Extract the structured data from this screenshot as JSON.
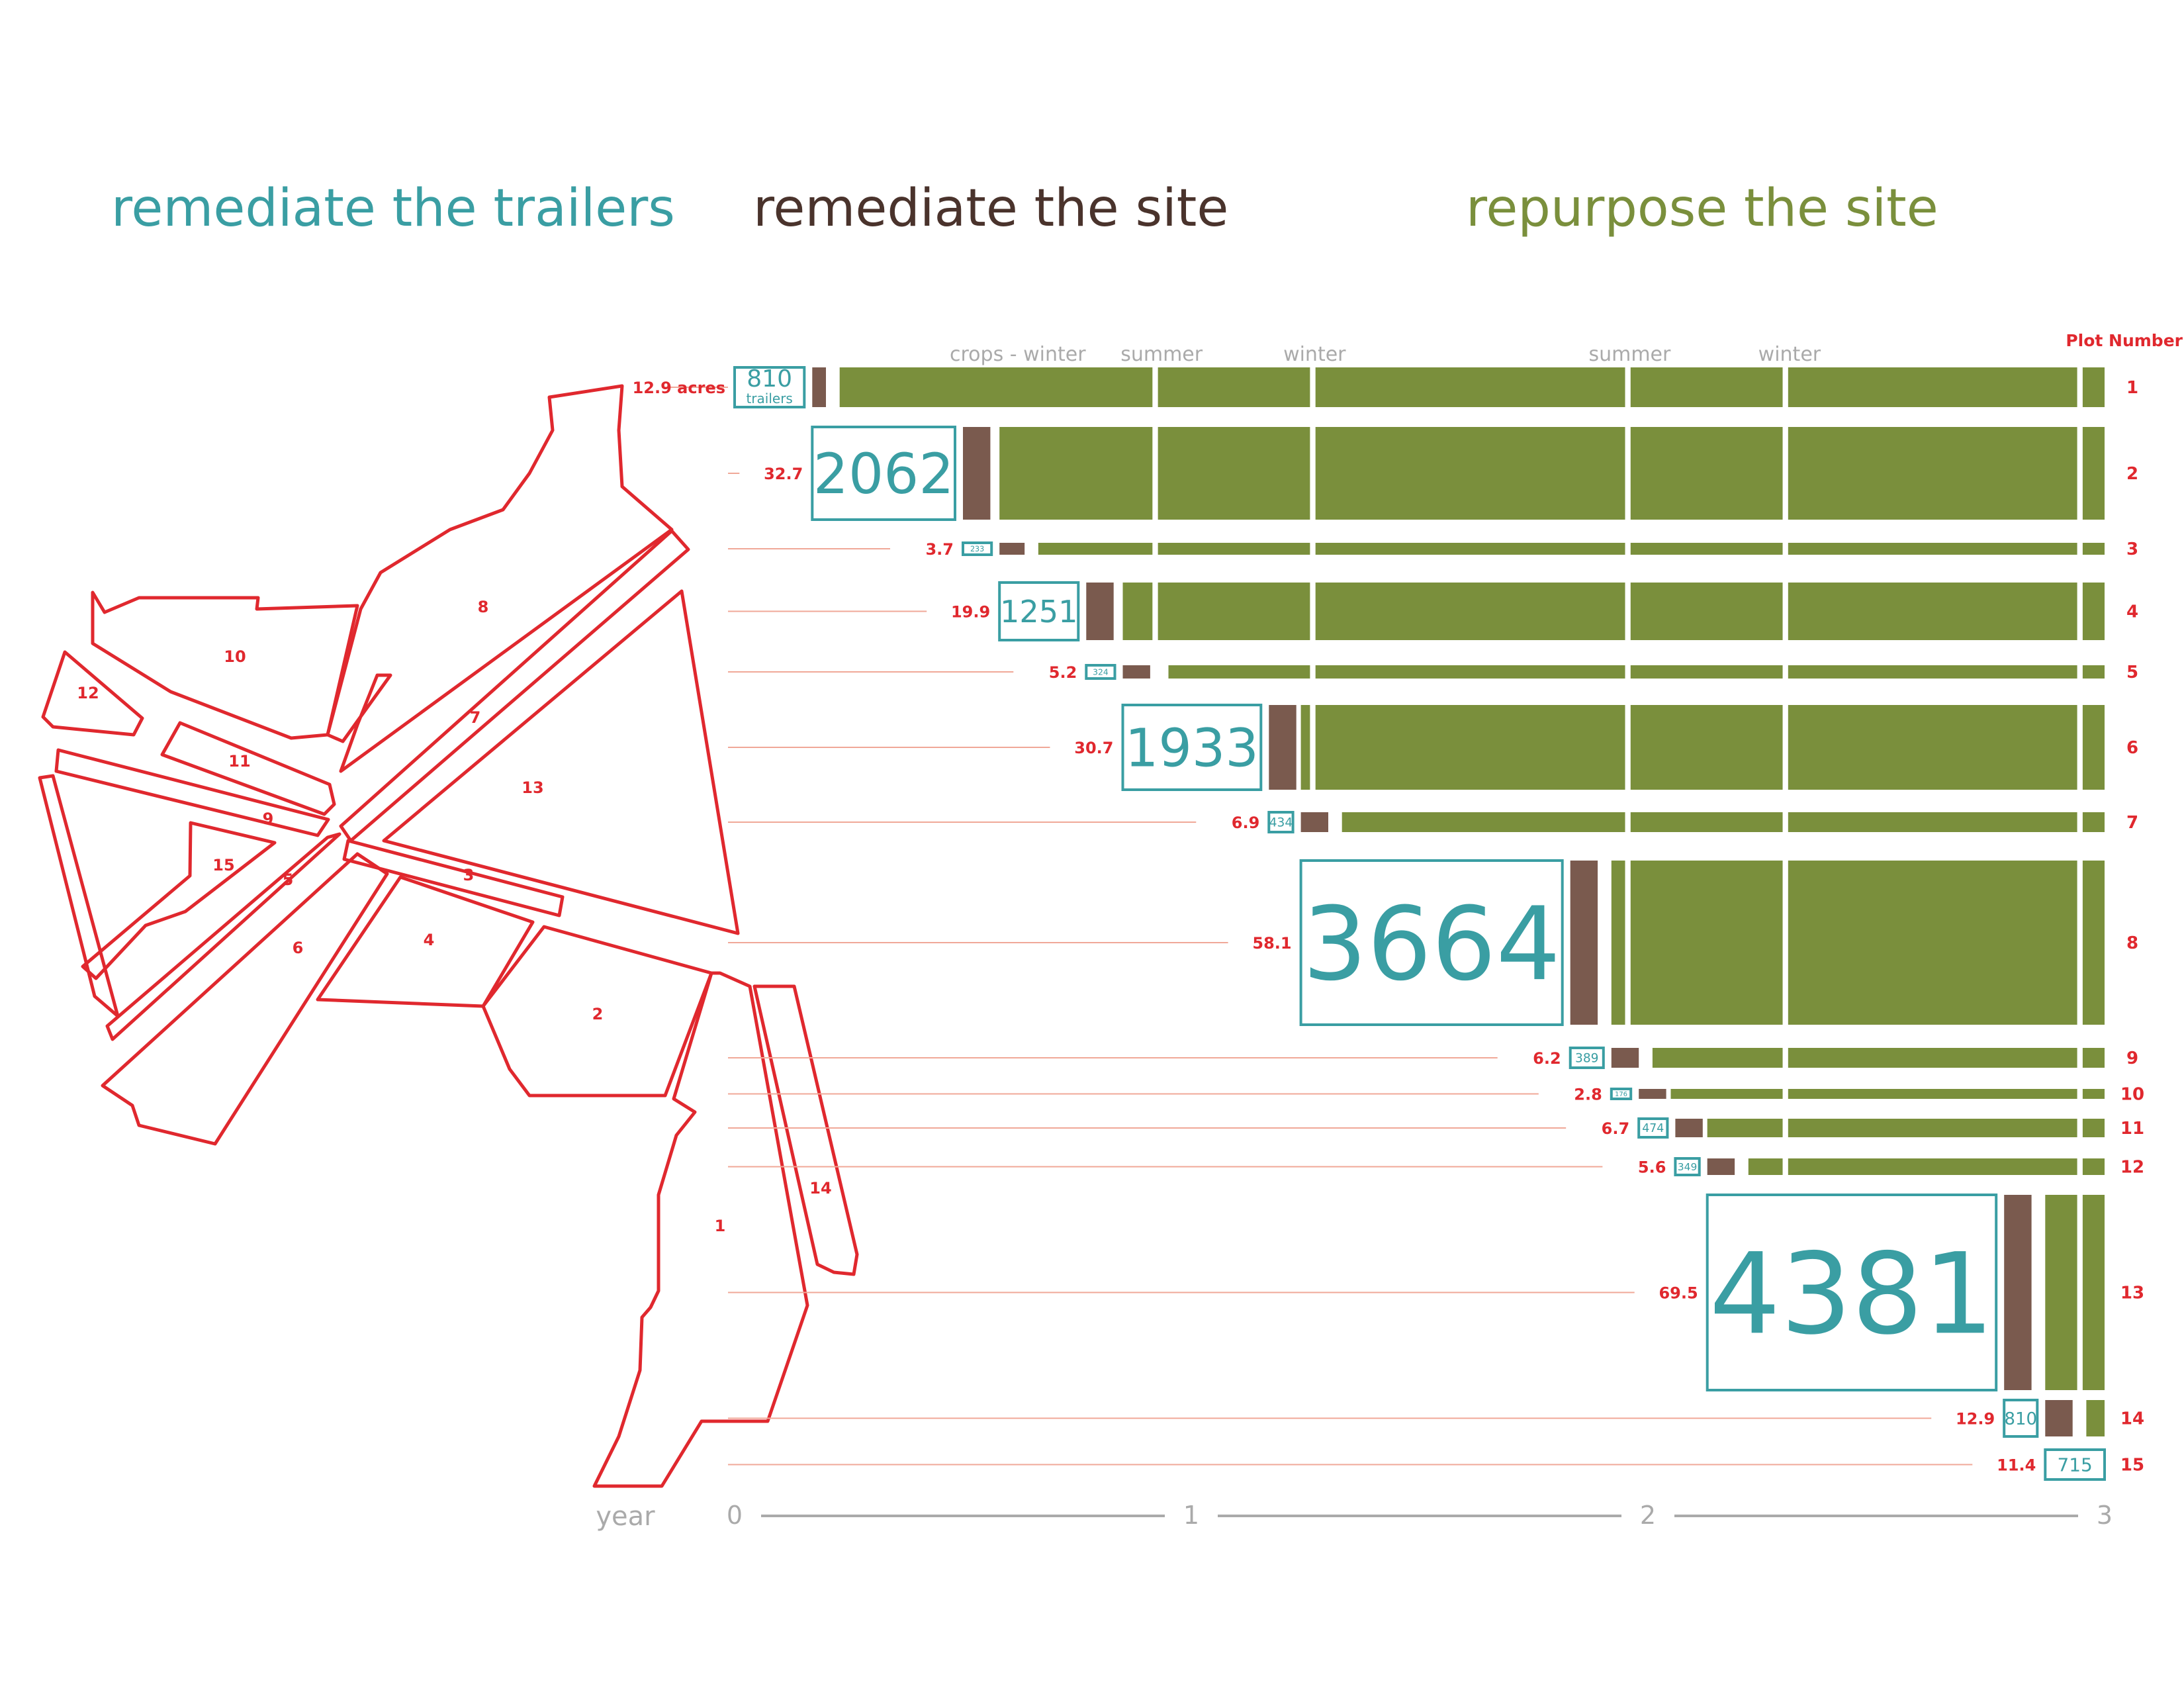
{
  "legend": {
    "remediate_trailers": "remediate the trailers",
    "remediate_site": "remediate the site",
    "repurpose_site": "repurpose the site"
  },
  "colors": {
    "trailers": "#3a9ea3",
    "remediate": "#7a5a4e",
    "repurpose": "#7a8f3c",
    "plot_red": "#e0282e",
    "leader": "#f0a898",
    "axis_gray": "#aaaaaa"
  },
  "header": {
    "plot_number_label": "Plot Number",
    "acres_suffix": " acres",
    "trailers_word": "trailers"
  },
  "season_labels": [
    {
      "text": "crops - winter",
      "year": 0.62
    },
    {
      "text": "summer",
      "year": 0.935
    },
    {
      "text": "winter",
      "year": 1.27
    },
    {
      "text": "summer",
      "year": 1.96
    },
    {
      "text": "winter",
      "year": 2.31
    }
  ],
  "axis": {
    "label": "year",
    "ticks": [
      "0",
      "1",
      "2",
      "3"
    ]
  },
  "chart_data": {
    "type": "bar",
    "description_axis": "year",
    "xlim": [
      0,
      3
    ],
    "season_gap_years": [
      0.915,
      1.26,
      1.95,
      2.295,
      2.94
    ],
    "plots": [
      {
        "plot": "1",
        "acres": "12.9",
        "trailers": "810",
        "trailer_start": 0.0,
        "remediate_start": 0.17,
        "remediate_end": 0.2,
        "repurpose_start": 0.23
      },
      {
        "plot": "2",
        "acres": "32.7",
        "trailers": "2062",
        "trailer_start": 0.17,
        "remediate_start": 0.5,
        "remediate_end": 0.56,
        "repurpose_start": 0.58
      },
      {
        "plot": "3",
        "acres": "3.7",
        "trailers": "233",
        "trailer_start": 0.5,
        "remediate_start": 0.58,
        "remediate_end": 0.635,
        "repurpose_start": 0.665
      },
      {
        "plot": "4",
        "acres": "19.9",
        "trailers": "1251",
        "trailer_start": 0.58,
        "remediate_start": 0.77,
        "remediate_end": 0.83,
        "repurpose_start": 0.85
      },
      {
        "plot": "5",
        "acres": "5.2",
        "trailers": "324",
        "trailer_start": 0.77,
        "remediate_start": 0.85,
        "remediate_end": 0.91,
        "repurpose_start": 0.95
      },
      {
        "plot": "6",
        "acres": "30.7",
        "trailers": "1933",
        "trailer_start": 0.85,
        "remediate_start": 1.17,
        "remediate_end": 1.23,
        "repurpose_start": 1.24
      },
      {
        "plot": "7",
        "acres": "6.9",
        "trailers": "434",
        "trailer_start": 1.17,
        "remediate_start": 1.24,
        "remediate_end": 1.3,
        "repurpose_start": 1.33
      },
      {
        "plot": "8",
        "acres": "58.1",
        "trailers": "3664",
        "trailer_start": 1.24,
        "remediate_start": 1.83,
        "remediate_end": 1.89,
        "repurpose_start": 1.92
      },
      {
        "plot": "9",
        "acres": "6.2",
        "trailers": "389",
        "trailer_start": 1.83,
        "remediate_start": 1.92,
        "remediate_end": 1.98,
        "repurpose_start": 2.01
      },
      {
        "plot": "10",
        "acres": "2.8",
        "trailers": "176",
        "trailer_start": 1.92,
        "remediate_start": 1.98,
        "remediate_end": 2.04,
        "repurpose_start": 2.05
      },
      {
        "plot": "11",
        "acres": "6.7",
        "trailers": "474",
        "trailer_start": 1.98,
        "remediate_start": 2.06,
        "remediate_end": 2.12,
        "repurpose_start": 2.13
      },
      {
        "plot": "12",
        "acres": "5.6",
        "trailers": "349",
        "trailer_start": 2.06,
        "remediate_start": 2.13,
        "remediate_end": 2.19,
        "repurpose_start": 2.22
      },
      {
        "plot": "13",
        "acres": "69.5",
        "trailers": "4381",
        "trailer_start": 2.13,
        "remediate_start": 2.78,
        "remediate_end": 2.84,
        "repurpose_start": 2.87
      },
      {
        "plot": "14",
        "acres": "12.9",
        "trailers": "810",
        "trailer_start": 2.78,
        "remediate_start": 2.87,
        "remediate_end": 2.93,
        "repurpose_start": 2.96
      },
      {
        "plot": "15",
        "acres": "11.4",
        "trailers": "715",
        "trailer_start": 2.87,
        "remediate_start": null,
        "remediate_end": null,
        "repurpose_start": null
      }
    ]
  },
  "map": {
    "labels": [
      "8",
      "10",
      "12",
      "7",
      "11",
      "13",
      "9",
      "15",
      "5",
      "3",
      "6",
      "4",
      "2",
      "14",
      "1"
    ]
  }
}
